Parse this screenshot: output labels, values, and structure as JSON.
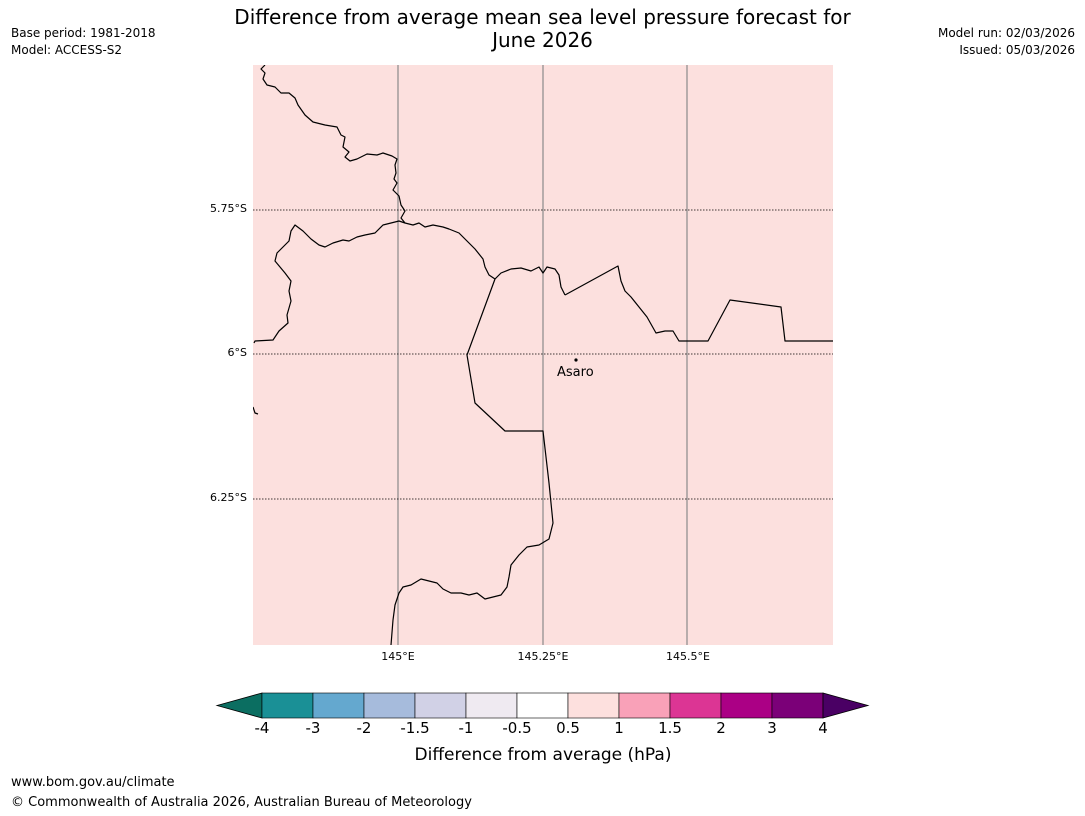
{
  "header": {
    "base_period": "Base period: 1981-2018",
    "model": "Model: ACCESS-S2",
    "title_line1": "Difference from average mean sea level pressure forecast for",
    "title_line2": "June 2026",
    "model_run": "Model run: 02/03/2026",
    "issued": "Issued: 05/03/2026"
  },
  "map": {
    "background_color": "#fce0de",
    "lat_labels": [
      "5.75°S",
      "6°S",
      "6.25°S"
    ],
    "lon_labels": [
      "145°E",
      "145.25°E",
      "145.5°E"
    ],
    "town": "Asaro"
  },
  "colorbar": {
    "title": "Difference from average (hPa)",
    "ticks": [
      "-4",
      "-3",
      "-2",
      "-1.5",
      "-1",
      "-0.5",
      "0.5",
      "1",
      "1.5",
      "2",
      "3",
      "4"
    ],
    "colors": [
      "#1a9096",
      "#64a8cf",
      "#a6bbdc",
      "#d1d1e6",
      "#efeaf1",
      "#ffffff",
      "#fde0de",
      "#f9a1b8",
      "#dc3594",
      "#ab0085",
      "#7b0078"
    ],
    "under_color": "#0b6e61",
    "over_color": "#4a0064"
  },
  "footer": {
    "url": "www.bom.gov.au/climate",
    "copyright": "© Commonwealth of Australia 2026, Australian Bureau of Meteorology"
  }
}
